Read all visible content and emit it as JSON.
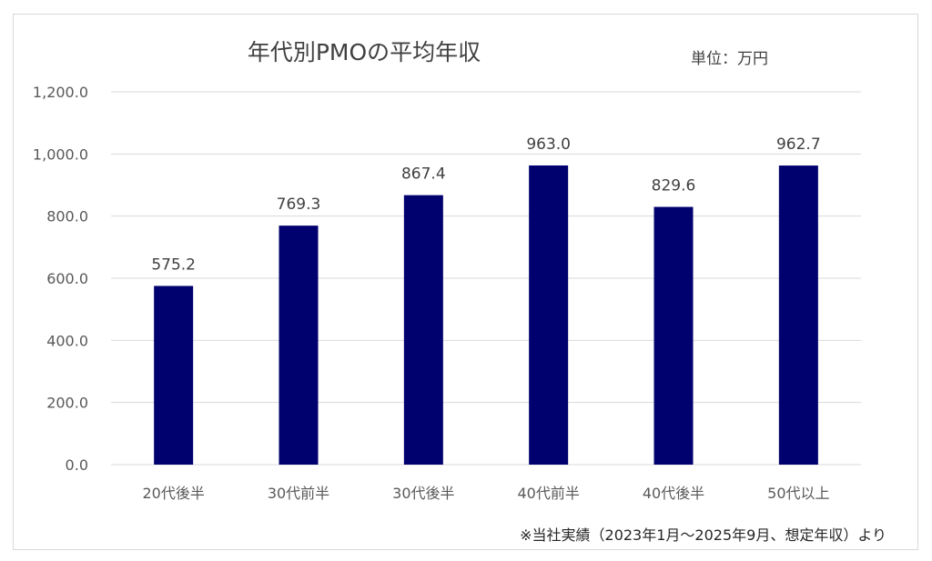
{
  "chart_data": {
    "type": "bar",
    "title": "年代別PMOの平均年収",
    "unit_note": "単位：万円",
    "footnote": "※当社実績（2023年1月〜2025年9月、想定年収）より",
    "categories": [
      "20代後半",
      "30代前半",
      "30代後半",
      "40代前半",
      "40代後半",
      "50代以上"
    ],
    "values": [
      575.2,
      769.3,
      867.4,
      963.0,
      829.6,
      962.7
    ],
    "value_labels": [
      "575.2",
      "769.3",
      "867.4",
      "963.0",
      "829.6",
      "962.7"
    ],
    "ylim": [
      0,
      1200
    ],
    "yticks": [
      0,
      200,
      400,
      600,
      800,
      1000,
      1200
    ],
    "ytick_labels": [
      "0.0",
      "200.0",
      "400.0",
      "600.0",
      "800.0",
      "1,000.0",
      "1,200.0"
    ],
    "grid": true,
    "bar_color": "#00006E",
    "grid_color": "#d9d9d9"
  }
}
